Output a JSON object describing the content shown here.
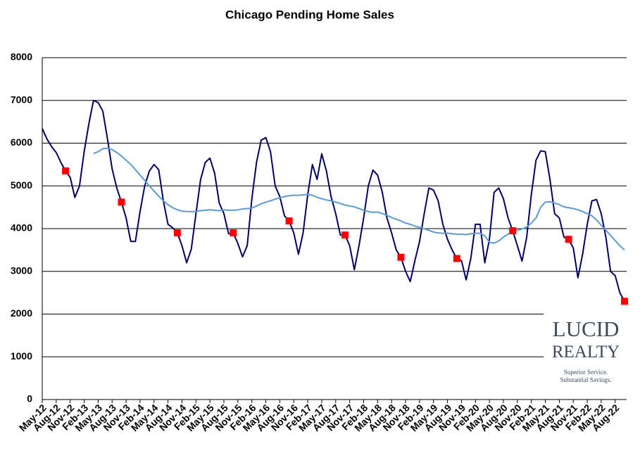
{
  "chart_data": {
    "type": "line",
    "title": "Chicago Pending Home Sales",
    "categories": [
      "May-12",
      null,
      null,
      "Aug-12",
      null,
      null,
      "Nov-12",
      null,
      null,
      "Feb-13",
      null,
      null,
      "May-13",
      null,
      null,
      "Aug-13",
      null,
      null,
      "Nov-13",
      null,
      null,
      "Feb-14",
      null,
      null,
      "May-14",
      null,
      null,
      "Aug-14",
      null,
      null,
      "Nov-14",
      null,
      null,
      "Feb-15",
      null,
      null,
      "May-15",
      null,
      null,
      "Aug-15",
      null,
      null,
      "Nov-15",
      null,
      null,
      "Feb-16",
      null,
      null,
      "May-16",
      null,
      null,
      "Aug-16",
      null,
      null,
      "Nov-16",
      null,
      null,
      "Feb-17",
      null,
      null,
      "May-17",
      null,
      null,
      "Aug-17",
      null,
      null,
      "Nov-17",
      null,
      null,
      "Feb-18",
      null,
      null,
      "May-18",
      null,
      null,
      "Aug-18",
      null,
      null,
      "Nov-18",
      null,
      null,
      "Feb-19",
      null,
      null,
      "May-19",
      null,
      null,
      "Aug-19",
      null,
      null,
      "Nov-19",
      null,
      null,
      "Feb-20",
      null,
      null,
      "May-20",
      null,
      null,
      "Aug-20",
      null,
      null,
      "Nov-20",
      null,
      null,
      "Feb-21",
      null,
      null,
      "May-21",
      null,
      null,
      "Aug-21",
      null,
      null,
      "Nov-21",
      null,
      null,
      "Feb-22",
      null,
      null,
      "May-22",
      null,
      null,
      "Aug-22",
      null,
      null
    ],
    "series": [
      {
        "color": "#000066",
        "mode": "line",
        "values": [
          6340,
          6100,
          5920,
          5780,
          5550,
          5350,
          5200,
          4730,
          5000,
          5800,
          6450,
          7000,
          6950,
          6750,
          6100,
          5400,
          4950,
          4620,
          4250,
          3700,
          3700,
          4400,
          5000,
          5350,
          5500,
          5380,
          4650,
          4100,
          4020,
          3900,
          3600,
          3200,
          3520,
          4350,
          5150,
          5550,
          5650,
          5300,
          4600,
          4350,
          3880,
          3900,
          3650,
          3340,
          3600,
          4700,
          5550,
          6070,
          6130,
          5800,
          5000,
          4750,
          4300,
          4180,
          3900,
          3400,
          3900,
          4800,
          5500,
          5150,
          5750,
          5350,
          4750,
          4350,
          3850,
          3850,
          3600,
          3040,
          3600,
          4250,
          5000,
          5370,
          5250,
          4850,
          4250,
          3900,
          3500,
          3330,
          3000,
          2760,
          3250,
          3700,
          4350,
          4950,
          4900,
          4650,
          4100,
          3750,
          3500,
          3300,
          3250,
          2800,
          3300,
          4100,
          4100,
          3200,
          3750,
          4850,
          4950,
          4700,
          4250,
          3950,
          3600,
          3240,
          3800,
          4800,
          5600,
          5820,
          5800,
          5150,
          4350,
          4250,
          3800,
          3750,
          3550,
          2850,
          3400,
          4100,
          4650,
          4680,
          4350,
          3800,
          3000,
          2900,
          2500,
          2300
        ]
      },
      {
        "color": "#5b9bd5",
        "mode": "line",
        "values": [
          null,
          null,
          null,
          null,
          null,
          null,
          null,
          null,
          null,
          null,
          null,
          5760,
          5800,
          5870,
          5880,
          5850,
          5780,
          5700,
          5600,
          5500,
          5380,
          5250,
          5130,
          5000,
          4880,
          4760,
          4650,
          4560,
          4490,
          4440,
          4410,
          4400,
          4400,
          4400,
          4420,
          4430,
          4440,
          4430,
          4420,
          4440,
          4430,
          4430,
          4440,
          4460,
          4470,
          4480,
          4530,
          4580,
          4620,
          4650,
          4690,
          4720,
          4750,
          4770,
          4780,
          4780,
          4790,
          4800,
          4780,
          4730,
          4700,
          4670,
          4650,
          4620,
          4590,
          4550,
          4530,
          4510,
          4470,
          4430,
          4400,
          4380,
          4390,
          4350,
          4310,
          4260,
          4220,
          4180,
          4130,
          4100,
          4060,
          4030,
          4000,
          3960,
          3920,
          3900,
          3890,
          3890,
          3880,
          3870,
          3870,
          3860,
          3880,
          3890,
          3890,
          3830,
          3680,
          3660,
          3710,
          3800,
          3870,
          3920,
          3960,
          3990,
          4040,
          4130,
          4250,
          4500,
          4620,
          4630,
          4600,
          4560,
          4510,
          4490,
          4470,
          4440,
          4400,
          4350,
          4300,
          4200,
          4080,
          3960,
          3840,
          3720,
          3600,
          3500
        ]
      },
      {
        "color": "#ff0000",
        "mode": "markers",
        "values": [
          null,
          null,
          null,
          null,
          null,
          5350,
          null,
          null,
          null,
          null,
          null,
          null,
          null,
          null,
          null,
          null,
          null,
          4620,
          null,
          null,
          null,
          null,
          null,
          null,
          null,
          null,
          null,
          null,
          null,
          3900,
          null,
          null,
          null,
          null,
          null,
          null,
          null,
          null,
          null,
          null,
          null,
          3900,
          null,
          null,
          null,
          null,
          null,
          null,
          null,
          null,
          null,
          null,
          null,
          4180,
          null,
          null,
          null,
          null,
          null,
          null,
          null,
          null,
          null,
          null,
          null,
          3850,
          null,
          null,
          null,
          null,
          null,
          null,
          null,
          null,
          null,
          null,
          null,
          3330,
          null,
          null,
          null,
          null,
          null,
          null,
          null,
          null,
          null,
          null,
          null,
          3300,
          null,
          null,
          null,
          null,
          null,
          null,
          null,
          null,
          null,
          null,
          null,
          3950,
          null,
          null,
          null,
          null,
          null,
          null,
          null,
          null,
          null,
          null,
          null,
          3750,
          null,
          null,
          null,
          null,
          null,
          null,
          null,
          null,
          null,
          null,
          null,
          2300
        ]
      }
    ],
    "ylim": [
      0,
      8000
    ],
    "yticks": [
      0,
      1000,
      2000,
      3000,
      4000,
      5000,
      6000,
      7000,
      8000
    ],
    "grid": true
  },
  "logo": {
    "name1": "LUCID",
    "name2": "REALTY",
    "tagline1": "Superior Service.",
    "tagline2": "Substantial Savings."
  }
}
